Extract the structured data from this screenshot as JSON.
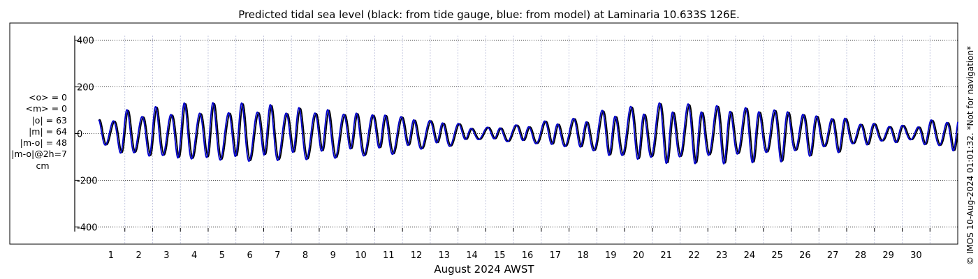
{
  "chart_data": {
    "type": "line",
    "title": "Predicted tidal sea level (black: from tide gauge, blue: from model) at Laminaria 10.633S 126E.",
    "xlabel": "August 2024 AWST",
    "ylabel": "",
    "xlim": [
      0,
      31
    ],
    "ylim": [
      -420,
      420
    ],
    "yticks": [
      -400,
      -200,
      0,
      200,
      400
    ],
    "xticks": [
      "1",
      "2",
      "3",
      "4",
      "5",
      "6",
      "7",
      "8",
      "9",
      "10",
      "11",
      "12",
      "13",
      "14",
      "15",
      "16",
      "17",
      "18",
      "19",
      "20",
      "21",
      "22",
      "23",
      "24",
      "25",
      "26",
      "27",
      "28",
      "29",
      "30"
    ],
    "grid": true,
    "x_unit": "days of August 2024 (AWST)",
    "y_unit": "cm",
    "amplitude_envelope_cm": [
      [
        0.0,
        60
      ],
      [
        1.5,
        105
      ],
      [
        3.5,
        125
      ],
      [
        5.5,
        125
      ],
      [
        7.5,
        110
      ],
      [
        10.0,
        90
      ],
      [
        12.5,
        55
      ],
      [
        13.8,
        25
      ],
      [
        15.0,
        35
      ],
      [
        17.0,
        60
      ],
      [
        19.0,
        110
      ],
      [
        20.5,
        130
      ],
      [
        22.5,
        125
      ],
      [
        24.5,
        115
      ],
      [
        26.5,
        80
      ],
      [
        28.0,
        45
      ],
      [
        29.3,
        35
      ],
      [
        30.5,
        65
      ],
      [
        31.0,
        80
      ]
    ],
    "series": [
      {
        "name": "tide gauge",
        "color": "#000000",
        "model": "tide gauge",
        "phase_shift_hours": 0
      },
      {
        "name": "model",
        "color": "#0000cc",
        "model": "model",
        "phase_shift_hours": -1.2
      }
    ],
    "stats": [
      "<o> = 0",
      "<m> = 0",
      "|o| = 63",
      "|m| = 64",
      "|m-o| = 48",
      "|m-o|@2h=7",
      "cm"
    ],
    "side_note": "© IMOS 10-Aug-2024 01:01:32. *Not for navigation*"
  }
}
